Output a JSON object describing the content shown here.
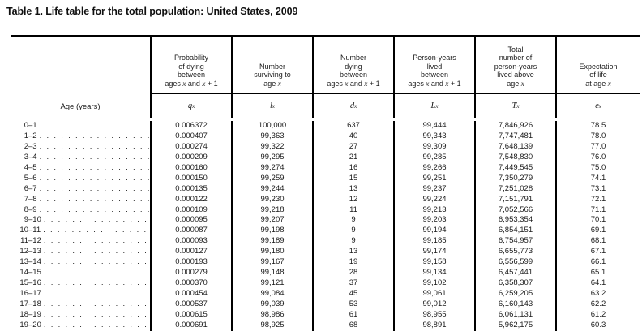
{
  "title": "Table 1. Life table for the total population: United States, 2009",
  "table": {
    "age_column_header": "Age (years)",
    "columns": [
      {
        "key": "qx",
        "desc_lines": [
          "Probability",
          "of dying",
          "between",
          "ages x and x + 1"
        ],
        "symbol": {
          "base": "q",
          "sub": "x"
        }
      },
      {
        "key": "lx",
        "desc_lines": [
          "Number",
          "surviving to",
          "age x"
        ],
        "symbol": {
          "base": "l",
          "sub": "x"
        }
      },
      {
        "key": "dx",
        "desc_lines": [
          "Number",
          "dying",
          "between",
          "ages x and x + 1"
        ],
        "symbol": {
          "base": "d",
          "sub": "x"
        }
      },
      {
        "key": "Lx",
        "desc_lines": [
          "Person-years",
          "lived",
          "between",
          "ages x and x + 1"
        ],
        "symbol": {
          "base": "L",
          "sub": "x"
        }
      },
      {
        "key": "Tx",
        "desc_lines": [
          "Total",
          "number of",
          "person-years",
          "lived above",
          "age x"
        ],
        "symbol": {
          "base": "T",
          "sub": "x"
        }
      },
      {
        "key": "ex",
        "desc_lines": [
          "Expectation",
          "of life",
          "at age x"
        ],
        "symbol": {
          "base": "e",
          "sub": "x"
        }
      }
    ],
    "rows": [
      {
        "age": "0–1",
        "qx": "0.006372",
        "lx": "100,000",
        "dx": "637",
        "Lx": "99,444",
        "Tx": "7,846,926",
        "ex": "78.5"
      },
      {
        "age": "1–2",
        "qx": "0.000407",
        "lx": "99,363",
        "dx": "40",
        "Lx": "99,343",
        "Tx": "7,747,481",
        "ex": "78.0"
      },
      {
        "age": "2–3",
        "qx": "0.000274",
        "lx": "99,322",
        "dx": "27",
        "Lx": "99,309",
        "Tx": "7,648,139",
        "ex": "77.0"
      },
      {
        "age": "3–4",
        "qx": "0.000209",
        "lx": "99,295",
        "dx": "21",
        "Lx": "99,285",
        "Tx": "7,548,830",
        "ex": "76.0"
      },
      {
        "age": "4–5",
        "qx": "0.000160",
        "lx": "99,274",
        "dx": "16",
        "Lx": "99,266",
        "Tx": "7,449,545",
        "ex": "75.0"
      },
      {
        "age": "5–6",
        "qx": "0.000150",
        "lx": "99,259",
        "dx": "15",
        "Lx": "99,251",
        "Tx": "7,350,279",
        "ex": "74.1"
      },
      {
        "age": "6–7",
        "qx": "0.000135",
        "lx": "99,244",
        "dx": "13",
        "Lx": "99,237",
        "Tx": "7,251,028",
        "ex": "73.1"
      },
      {
        "age": "7–8",
        "qx": "0.000122",
        "lx": "99,230",
        "dx": "12",
        "Lx": "99,224",
        "Tx": "7,151,791",
        "ex": "72.1"
      },
      {
        "age": "8–9",
        "qx": "0.000109",
        "lx": "99,218",
        "dx": "11",
        "Lx": "99,213",
        "Tx": "7,052,566",
        "ex": "71.1"
      },
      {
        "age": "9–10",
        "qx": "0.000095",
        "lx": "99,207",
        "dx": "9",
        "Lx": "99,203",
        "Tx": "6,953,354",
        "ex": "70.1"
      },
      {
        "age": "10–11",
        "qx": "0.000087",
        "lx": "99,198",
        "dx": "9",
        "Lx": "99,194",
        "Tx": "6,854,151",
        "ex": "69.1"
      },
      {
        "age": "11–12",
        "qx": "0.000093",
        "lx": "99,189",
        "dx": "9",
        "Lx": "99,185",
        "Tx": "6,754,957",
        "ex": "68.1"
      },
      {
        "age": "12–13",
        "qx": "0.000127",
        "lx": "99,180",
        "dx": "13",
        "Lx": "99,174",
        "Tx": "6,655,773",
        "ex": "67.1"
      },
      {
        "age": "13–14",
        "qx": "0.000193",
        "lx": "99,167",
        "dx": "19",
        "Lx": "99,158",
        "Tx": "6,556,599",
        "ex": "66.1"
      },
      {
        "age": "14–15",
        "qx": "0.000279",
        "lx": "99,148",
        "dx": "28",
        "Lx": "99,134",
        "Tx": "6,457,441",
        "ex": "65.1"
      },
      {
        "age": "15–16",
        "qx": "0.000370",
        "lx": "99,121",
        "dx": "37",
        "Lx": "99,102",
        "Tx": "6,358,307",
        "ex": "64.1"
      },
      {
        "age": "16–17",
        "qx": "0.000454",
        "lx": "99,084",
        "dx": "45",
        "Lx": "99,061",
        "Tx": "6,259,205",
        "ex": "63.2"
      },
      {
        "age": "17–18",
        "qx": "0.000537",
        "lx": "99,039",
        "dx": "53",
        "Lx": "99,012",
        "Tx": "6,160,143",
        "ex": "62.2"
      },
      {
        "age": "18–19",
        "qx": "0.000615",
        "lx": "98,986",
        "dx": "61",
        "Lx": "98,955",
        "Tx": "6,061,131",
        "ex": "61.2"
      },
      {
        "age": "19–20",
        "qx": "0.000691",
        "lx": "98,925",
        "dx": "68",
        "Lx": "98,891",
        "Tx": "5,962,175",
        "ex": "60.3"
      }
    ]
  }
}
